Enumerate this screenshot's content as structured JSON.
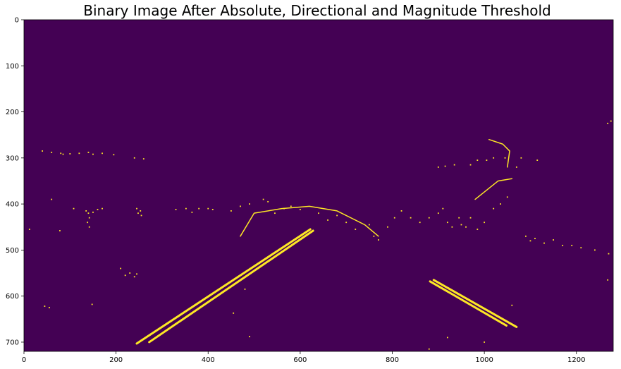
{
  "title": "Binary Image After Absolute, Directional and Magnitude Threshold",
  "image": {
    "width": 1280,
    "height": 720,
    "background_color": "#440154",
    "foreground_color": "#fde725",
    "colormap": "viridis"
  },
  "x_ticks": [
    "0",
    "200",
    "400",
    "600",
    "800",
    "1000",
    "1200"
  ],
  "y_ticks": [
    "0",
    "100",
    "200",
    "300",
    "400",
    "500",
    "600",
    "700"
  ],
  "features": {
    "lines": [
      {
        "name": "left-lane-line-outer",
        "points": [
          [
            245,
            703
          ],
          [
            622,
            455
          ]
        ],
        "width": 3
      },
      {
        "name": "left-lane-line-inner",
        "points": [
          [
            272,
            700
          ],
          [
            628,
            458
          ]
        ],
        "width": 3
      },
      {
        "name": "right-lane-line-upper",
        "points": [
          [
            890,
            565
          ],
          [
            1070,
            667
          ]
        ],
        "width": 3
      },
      {
        "name": "right-lane-line-lower",
        "points": [
          [
            882,
            568
          ],
          [
            1048,
            664
          ]
        ],
        "width": 3
      },
      {
        "name": "horizon-arc",
        "points": [
          [
            470,
            470
          ],
          [
            500,
            420
          ],
          [
            560,
            410
          ],
          [
            620,
            405
          ],
          [
            680,
            415
          ],
          [
            740,
            445
          ],
          [
            770,
            470
          ]
        ],
        "width": 1.5
      },
      {
        "name": "car-outline",
        "points": [
          [
            980,
            390
          ],
          [
            1030,
            350
          ],
          [
            1060,
            345
          ]
        ],
        "width": 1.5
      },
      {
        "name": "tree-outline",
        "points": [
          [
            1010,
            260
          ],
          [
            1040,
            270
          ],
          [
            1055,
            285
          ],
          [
            1050,
            320
          ]
        ],
        "width": 1.5
      }
    ],
    "dots": [
      [
        40,
        285
      ],
      [
        60,
        288
      ],
      [
        80,
        290
      ],
      [
        85,
        292
      ],
      [
        100,
        291
      ],
      [
        120,
        290
      ],
      [
        140,
        288
      ],
      [
        150,
        292
      ],
      [
        170,
        290
      ],
      [
        195,
        293
      ],
      [
        240,
        300
      ],
      [
        260,
        302
      ],
      [
        60,
        390
      ],
      [
        108,
        410
      ],
      [
        135,
        415
      ],
      [
        140,
        420
      ],
      [
        142,
        430
      ],
      [
        138,
        440
      ],
      [
        142,
        450
      ],
      [
        150,
        418
      ],
      [
        160,
        412
      ],
      [
        170,
        410
      ],
      [
        12,
        455
      ],
      [
        78,
        458
      ],
      [
        330,
        412
      ],
      [
        352,
        410
      ],
      [
        365,
        418
      ],
      [
        380,
        410
      ],
      [
        400,
        410
      ],
      [
        410,
        412
      ],
      [
        450,
        415
      ],
      [
        470,
        405
      ],
      [
        490,
        400
      ],
      [
        520,
        390
      ],
      [
        530,
        395
      ],
      [
        545,
        420
      ],
      [
        565,
        410
      ],
      [
        580,
        405
      ],
      [
        600,
        412
      ],
      [
        640,
        420
      ],
      [
        660,
        435
      ],
      [
        680,
        425
      ],
      [
        700,
        440
      ],
      [
        720,
        455
      ],
      [
        750,
        445
      ],
      [
        760,
        470
      ],
      [
        770,
        478
      ],
      [
        790,
        450
      ],
      [
        805,
        430
      ],
      [
        820,
        415
      ],
      [
        840,
        430
      ],
      [
        860,
        440
      ],
      [
        880,
        430
      ],
      [
        900,
        420
      ],
      [
        910,
        410
      ],
      [
        920,
        440
      ],
      [
        930,
        450
      ],
      [
        945,
        430
      ],
      [
        950,
        445
      ],
      [
        960,
        450
      ],
      [
        970,
        430
      ],
      [
        985,
        455
      ],
      [
        1000,
        440
      ],
      [
        1020,
        410
      ],
      [
        1035,
        400
      ],
      [
        1050,
        385
      ],
      [
        1070,
        320
      ],
      [
        1080,
        300
      ],
      [
        970,
        315
      ],
      [
        985,
        305
      ],
      [
        900,
        320
      ],
      [
        915,
        318
      ],
      [
        935,
        315
      ],
      [
        1005,
        305
      ],
      [
        1020,
        300
      ],
      [
        1045,
        300
      ],
      [
        1090,
        470
      ],
      [
        1100,
        480
      ],
      [
        1110,
        475
      ],
      [
        1130,
        485
      ],
      [
        1150,
        478
      ],
      [
        1170,
        490
      ],
      [
        1190,
        490
      ],
      [
        1210,
        495
      ],
      [
        1240,
        500
      ],
      [
        1270,
        508
      ],
      [
        1268,
        565
      ],
      [
        1275,
        220
      ],
      [
        1268,
        225
      ],
      [
        1115,
        305
      ],
      [
        245,
        410
      ],
      [
        248,
        420
      ],
      [
        253,
        415
      ],
      [
        255,
        425
      ],
      [
        220,
        555
      ],
      [
        230,
        550
      ],
      [
        240,
        558
      ],
      [
        245,
        552
      ],
      [
        45,
        622
      ],
      [
        55,
        625
      ],
      [
        148,
        618
      ],
      [
        210,
        540
      ],
      [
        480,
        585
      ],
      [
        455,
        637
      ],
      [
        490,
        688
      ],
      [
        1060,
        620
      ],
      [
        920,
        690
      ],
      [
        1000,
        700
      ],
      [
        880,
        715
      ]
    ]
  }
}
